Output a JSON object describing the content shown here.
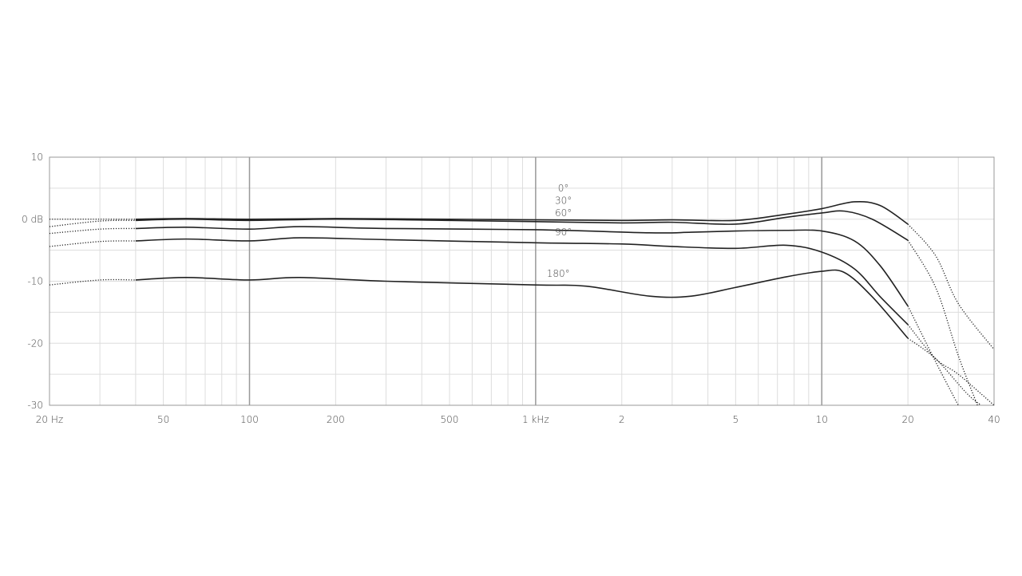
{
  "chart_data": {
    "type": "line",
    "title": "",
    "xlabel": "",
    "ylabel": "",
    "x_scale": "log",
    "xlim": [
      20,
      40000
    ],
    "ylim": [
      -30,
      10
    ],
    "grid": true,
    "x_ticks": [
      {
        "value": 20,
        "label": "20 Hz"
      },
      {
        "value": 50,
        "label": "50"
      },
      {
        "value": 100,
        "label": "100"
      },
      {
        "value": 200,
        "label": "200"
      },
      {
        "value": 500,
        "label": "500"
      },
      {
        "value": 1000,
        "label": "1 kHz"
      },
      {
        "value": 2000,
        "label": "2"
      },
      {
        "value": 5000,
        "label": "5"
      },
      {
        "value": 10000,
        "label": "10"
      },
      {
        "value": 20000,
        "label": "20"
      },
      {
        "value": 40000,
        "label": "40"
      }
    ],
    "y_ticks": [
      {
        "value": 10,
        "label": "10"
      },
      {
        "value": 0,
        "label": "0 dB"
      },
      {
        "value": -10,
        "label": "-10"
      },
      {
        "value": -20,
        "label": "-20"
      },
      {
        "value": -30,
        "label": "-30"
      }
    ],
    "solid_range_hz": [
      40,
      20000
    ],
    "line_color": "#222222",
    "grid_color": "#dddddd",
    "major_grid_color": "#999999",
    "series": [
      {
        "name": "0°",
        "label_at": [
          1250,
          4.5
        ],
        "points": [
          [
            20,
            0
          ],
          [
            30,
            0
          ],
          [
            40,
            0
          ],
          [
            60,
            0.1
          ],
          [
            100,
            0
          ],
          [
            200,
            0.1
          ],
          [
            500,
            0
          ],
          [
            1000,
            -0.1
          ],
          [
            2000,
            -0.2
          ],
          [
            3000,
            -0.1
          ],
          [
            5000,
            -0.2
          ],
          [
            7500,
            0.8
          ],
          [
            10000,
            1.7
          ],
          [
            13000,
            2.8
          ],
          [
            16000,
            2.2
          ],
          [
            20000,
            -0.8
          ],
          [
            25000,
            -5.9
          ],
          [
            30000,
            -13.6
          ],
          [
            40000,
            -21
          ]
        ]
      },
      {
        "name": "30°",
        "label_at": [
          1250,
          2.5
        ],
        "points": [
          [
            20,
            -1.2
          ],
          [
            30,
            -0.3
          ],
          [
            40,
            -0.2
          ],
          [
            60,
            0
          ],
          [
            100,
            -0.2
          ],
          [
            200,
            0
          ],
          [
            500,
            -0.2
          ],
          [
            1000,
            -0.4
          ],
          [
            2000,
            -0.6
          ],
          [
            3000,
            -0.5
          ],
          [
            5000,
            -0.8
          ],
          [
            7500,
            0.3
          ],
          [
            10000,
            1
          ],
          [
            12000,
            1.3
          ],
          [
            15000,
            0
          ],
          [
            20000,
            -3.4
          ],
          [
            25000,
            -11
          ],
          [
            30000,
            -22
          ],
          [
            35000,
            -30
          ]
        ]
      },
      {
        "name": "60°",
        "label_at": [
          1250,
          0.5
        ],
        "points": [
          [
            20,
            -2.3
          ],
          [
            30,
            -1.6
          ],
          [
            40,
            -1.5
          ],
          [
            60,
            -1.3
          ],
          [
            100,
            -1.6
          ],
          [
            150,
            -1.2
          ],
          [
            300,
            -1.5
          ],
          [
            1000,
            -1.7
          ],
          [
            2500,
            -2.2
          ],
          [
            3500,
            -2.1
          ],
          [
            5000,
            -1.9
          ],
          [
            7500,
            -1.8
          ],
          [
            10000,
            -1.9
          ],
          [
            13000,
            -3.5
          ],
          [
            16000,
            -7.5
          ],
          [
            20000,
            -14
          ],
          [
            25000,
            -23
          ],
          [
            30000,
            -30
          ]
        ]
      },
      {
        "name": "90°",
        "label_at": [
          1250,
          -2.6
        ],
        "points": [
          [
            20,
            -4.4
          ],
          [
            30,
            -3.6
          ],
          [
            40,
            -3.5
          ],
          [
            60,
            -3.2
          ],
          [
            100,
            -3.5
          ],
          [
            150,
            -3
          ],
          [
            300,
            -3.3
          ],
          [
            1000,
            -3.8
          ],
          [
            2000,
            -4
          ],
          [
            3000,
            -4.4
          ],
          [
            5000,
            -4.7
          ],
          [
            7500,
            -4.2
          ],
          [
            10000,
            -5.3
          ],
          [
            13000,
            -8
          ],
          [
            16000,
            -12.5
          ],
          [
            20000,
            -17
          ],
          [
            25000,
            -22.5
          ],
          [
            30000,
            -25
          ],
          [
            40000,
            -30
          ]
        ]
      },
      {
        "name": "180°",
        "label_at": [
          1200,
          -9.3
        ],
        "points": [
          [
            20,
            -10.6
          ],
          [
            30,
            -9.8
          ],
          [
            40,
            -9.8
          ],
          [
            60,
            -9.4
          ],
          [
            100,
            -9.8
          ],
          [
            150,
            -9.4
          ],
          [
            300,
            -10
          ],
          [
            1000,
            -10.6
          ],
          [
            1500,
            -10.8
          ],
          [
            2500,
            -12.4
          ],
          [
            3500,
            -12.4
          ],
          [
            5000,
            -11
          ],
          [
            7500,
            -9.3
          ],
          [
            10000,
            -8.4
          ],
          [
            12000,
            -8.6
          ],
          [
            15000,
            -12.5
          ],
          [
            20000,
            -19.2
          ],
          [
            25000,
            -22.5
          ],
          [
            32000,
            -28
          ],
          [
            36000,
            -30
          ]
        ]
      }
    ]
  }
}
